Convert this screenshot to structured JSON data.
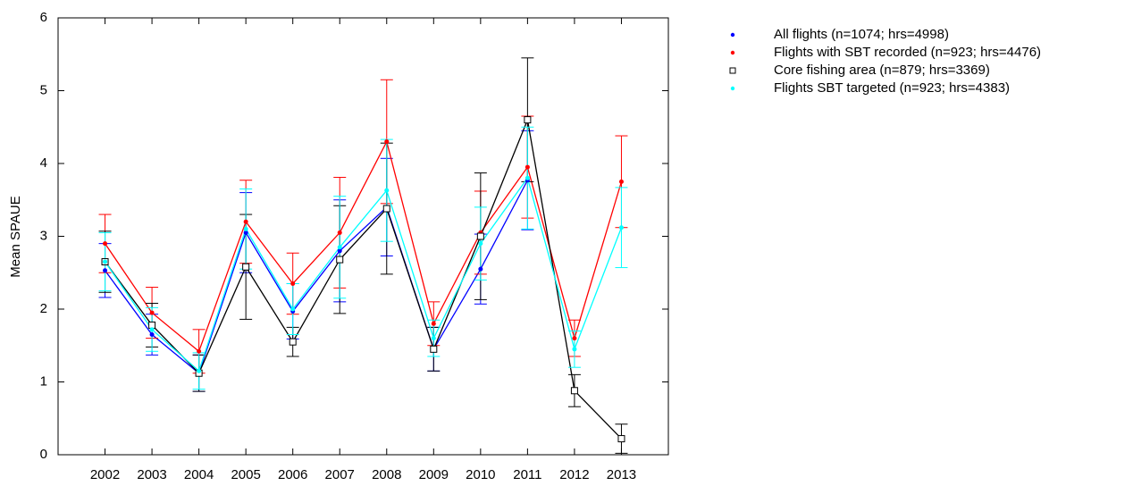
{
  "chart_data": {
    "type": "line",
    "y_label": "Mean SPAUE",
    "x": [
      2002,
      2003,
      2004,
      2005,
      2006,
      2007,
      2008,
      2009,
      2010,
      2011,
      2012,
      2013
    ],
    "xlim": [
      2001,
      2014
    ],
    "xticks": [
      2002,
      2003,
      2004,
      2005,
      2006,
      2007,
      2008,
      2009,
      2010,
      2011,
      2012,
      2013
    ],
    "ylim": [
      0,
      6
    ],
    "yticks": [
      0,
      1,
      2,
      3,
      4,
      5,
      6
    ],
    "legend": "top-right",
    "series": [
      {
        "name": "All flights (n=1074; hrs=4998)",
        "color": "#0000ff",
        "marker": "dot",
        "values": [
          2.53,
          1.65,
          1.12,
          3.05,
          1.97,
          2.8,
          3.4,
          1.45,
          2.55,
          3.77,
          null,
          null
        ],
        "errors": [
          0.37,
          0.28,
          0.25,
          0.55,
          0.38,
          0.7,
          0.67,
          0.3,
          0.48,
          0.68,
          null,
          null
        ]
      },
      {
        "name": "Flights with SBT recorded (n=923; hrs=4476)",
        "color": "#ff0000",
        "marker": "dot",
        "values": [
          2.9,
          1.95,
          1.42,
          3.2,
          2.35,
          3.05,
          4.3,
          1.8,
          3.05,
          3.95,
          1.6,
          3.75
        ],
        "errors": [
          0.4,
          0.35,
          0.3,
          0.57,
          0.42,
          0.76,
          0.85,
          0.3,
          0.57,
          0.7,
          0.25,
          0.63
        ]
      },
      {
        "name": "Core fishing area (n=879; hrs=3369)",
        "color": "#000000",
        "marker": "square",
        "values": [
          2.65,
          1.78,
          1.12,
          2.58,
          1.55,
          2.68,
          3.38,
          1.45,
          3.0,
          4.6,
          0.88,
          0.22
        ],
        "errors": [
          0.42,
          0.3,
          0.25,
          0.72,
          0.2,
          0.74,
          0.9,
          0.3,
          0.87,
          0.85,
          0.22,
          0.2
        ]
      },
      {
        "name": "Flights SBT targeted (n=923; hrs=4383)",
        "color": "#00ffff",
        "marker": "dot",
        "values": [
          2.65,
          1.72,
          1.15,
          3.1,
          2.0,
          2.85,
          3.63,
          1.6,
          2.9,
          3.8,
          1.45,
          3.12
        ],
        "errors": [
          0.4,
          0.3,
          0.25,
          0.55,
          0.35,
          0.7,
          0.7,
          0.25,
          0.5,
          0.7,
          0.25,
          0.55
        ]
      }
    ]
  }
}
